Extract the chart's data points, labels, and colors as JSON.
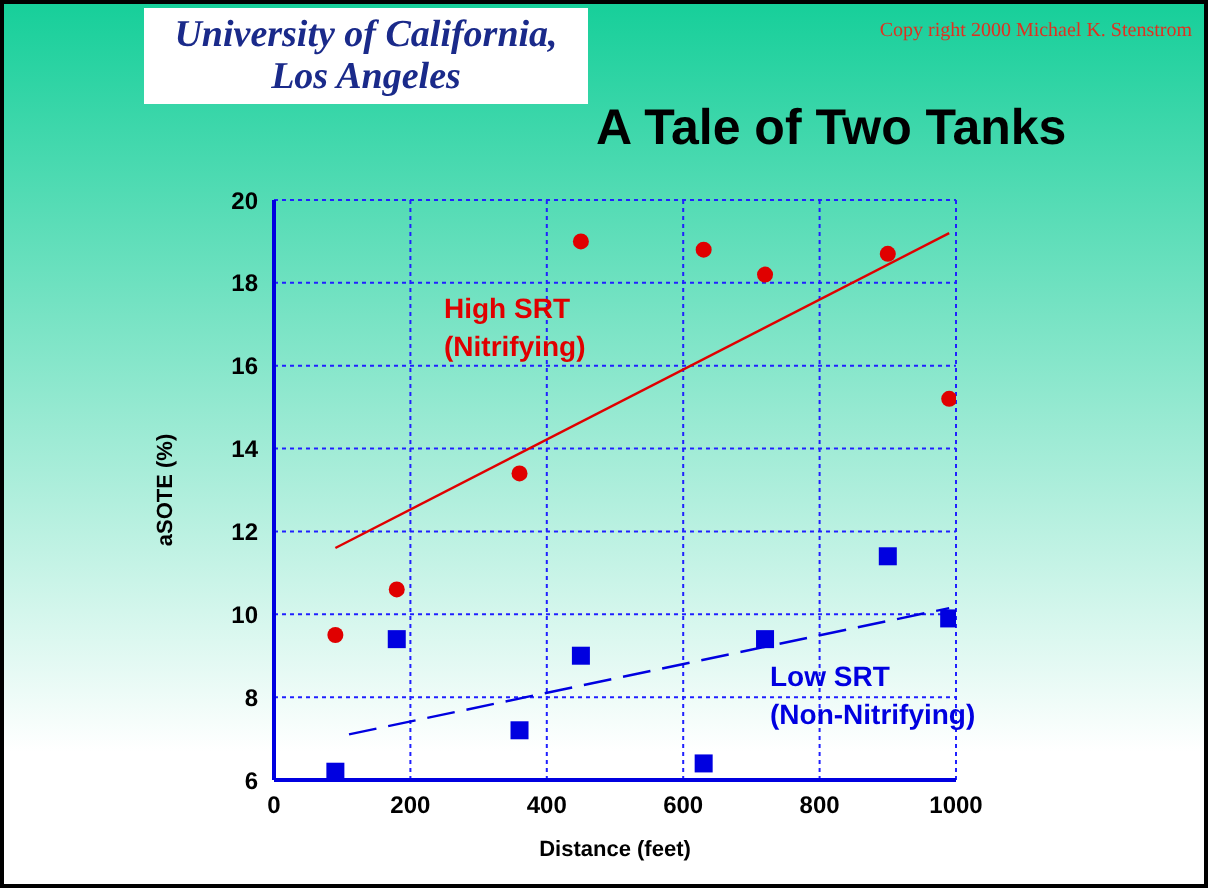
{
  "chart_data": {
    "type": "scatter",
    "title": "A Tale of Two Tanks",
    "annotations": [
      "University of California, Los Angeles",
      "Copy right 2000  Michael K. Stenstrom"
    ],
    "xlabel": "Distance (feet)",
    "ylabel": "aSOTE (%)",
    "xlim": [
      0,
      1000
    ],
    "xticks": [
      0,
      200,
      400,
      600,
      800,
      1000
    ],
    "ylim": [
      6,
      20
    ],
    "yticks": [
      6,
      8,
      10,
      12,
      14,
      16,
      18,
      20
    ],
    "grid": true,
    "legend": false,
    "series": [
      {
        "name": "High SRT (Nitrifying)",
        "color": "#e00000",
        "marker": "circle",
        "x": [
          90,
          180,
          360,
          450,
          630,
          720,
          900,
          990
        ],
        "values": [
          9.5,
          10.6,
          13.4,
          19.0,
          18.8,
          18.2,
          18.7,
          15.2
        ]
      },
      {
        "name": "Low SRT (Non-Nitrifying)",
        "color": "#0000e0",
        "marker": "square",
        "x": [
          90,
          180,
          360,
          450,
          630,
          720,
          900,
          990
        ],
        "values": [
          6.2,
          9.4,
          7.2,
          9.0,
          6.4,
          9.4,
          11.4,
          9.9
        ]
      },
      {
        "type": "line",
        "color": "#e00000",
        "line_style": "solid",
        "marker": "none",
        "x": [
          90,
          990
        ],
        "values": [
          11.6,
          19.2
        ]
      },
      {
        "type": "line",
        "color": "#0000e0",
        "line_style": "dashed",
        "marker": "none",
        "x": [
          110,
          990
        ],
        "values": [
          7.1,
          10.15
        ]
      }
    ]
  }
}
